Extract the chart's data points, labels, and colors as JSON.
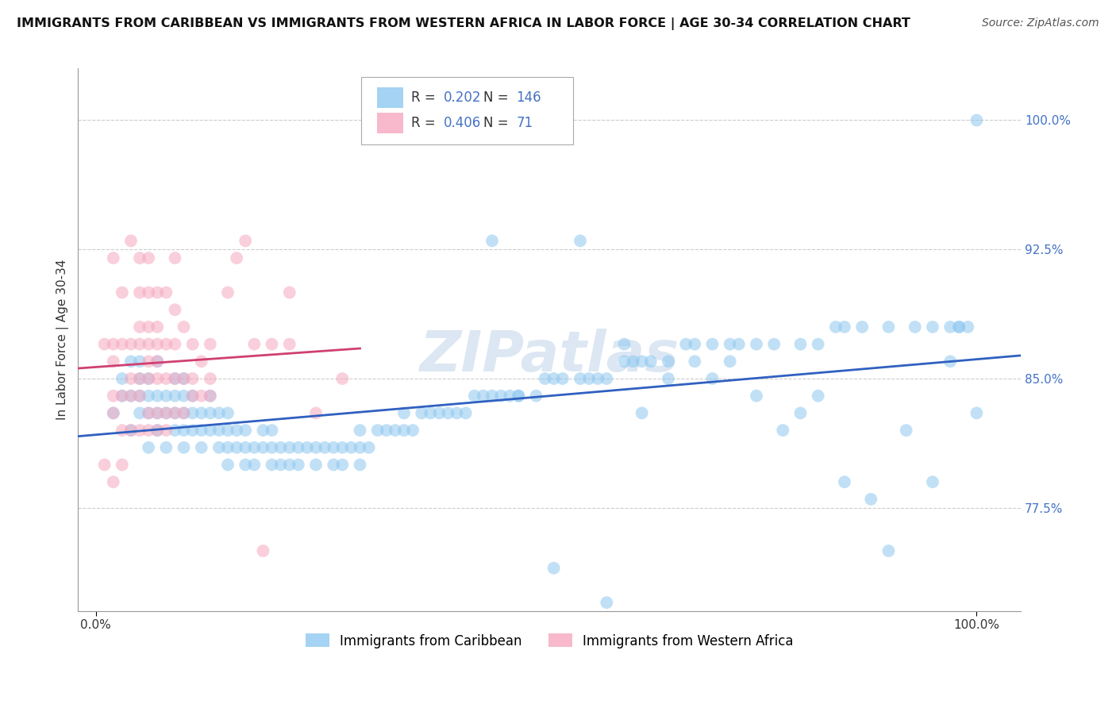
{
  "title": "IMMIGRANTS FROM CARIBBEAN VS IMMIGRANTS FROM WESTERN AFRICA IN LABOR FORCE | AGE 30-34 CORRELATION CHART",
  "source": "Source: ZipAtlas.com",
  "ylabel_label": "In Labor Force | Age 30-34",
  "y_ticks": [
    0.775,
    0.85,
    0.925,
    1.0
  ],
  "y_tick_labels": [
    "77.5%",
    "85.0%",
    "92.5%",
    "100.0%"
  ],
  "ylim": [
    0.715,
    1.03
  ],
  "xlim": [
    -0.02,
    1.05
  ],
  "series1_color": "#8EC8F0",
  "series1_edge": "#8EC8F0",
  "series2_color": "#F5A8BF",
  "series2_edge": "#F5A8BF",
  "series1_label": "Immigrants from Caribbean",
  "series2_label": "Immigrants from Western Africa",
  "R1": 0.202,
  "N1": 146,
  "R2": 0.406,
  "N2": 71,
  "line1_color": "#3060C0",
  "line2_color": "#D04070",
  "watermark": "ZIPatlas",
  "background_color": "#FFFFFF",
  "grid_color": "#CCCCCC",
  "series1_x": [
    0.02,
    0.03,
    0.03,
    0.04,
    0.04,
    0.04,
    0.05,
    0.05,
    0.05,
    0.05,
    0.06,
    0.06,
    0.06,
    0.06,
    0.07,
    0.07,
    0.07,
    0.07,
    0.08,
    0.08,
    0.08,
    0.09,
    0.09,
    0.09,
    0.09,
    0.1,
    0.1,
    0.1,
    0.1,
    0.1,
    0.11,
    0.11,
    0.11,
    0.12,
    0.12,
    0.12,
    0.13,
    0.13,
    0.13,
    0.14,
    0.14,
    0.14,
    0.15,
    0.15,
    0.15,
    0.15,
    0.16,
    0.16,
    0.17,
    0.17,
    0.17,
    0.18,
    0.18,
    0.19,
    0.19,
    0.2,
    0.2,
    0.2,
    0.21,
    0.21,
    0.22,
    0.22,
    0.23,
    0.23,
    0.24,
    0.25,
    0.25,
    0.26,
    0.27,
    0.27,
    0.28,
    0.28,
    0.29,
    0.3,
    0.3,
    0.3,
    0.31,
    0.32,
    0.33,
    0.34,
    0.35,
    0.35,
    0.36,
    0.37,
    0.38,
    0.39,
    0.4,
    0.41,
    0.42,
    0.43,
    0.44,
    0.45,
    0.46,
    0.47,
    0.48,
    0.5,
    0.51,
    0.52,
    0.53,
    0.55,
    0.56,
    0.57,
    0.58,
    0.6,
    0.61,
    0.62,
    0.63,
    0.65,
    0.67,
    0.68,
    0.7,
    0.72,
    0.73,
    0.75,
    0.77,
    0.8,
    0.82,
    0.84,
    0.85,
    0.87,
    0.9,
    0.93,
    0.95,
    0.98,
    1.0,
    0.45,
    0.55,
    0.6,
    0.65,
    0.7,
    0.75,
    0.8,
    0.85,
    0.9,
    0.95,
    1.0,
    0.48,
    0.52,
    0.58,
    0.62,
    0.68,
    0.72,
    0.78,
    0.82,
    0.88,
    0.92,
    0.97,
    0.99,
    0.98,
    0.97,
    0.96
  ],
  "series1_y": [
    0.83,
    0.84,
    0.85,
    0.82,
    0.84,
    0.86,
    0.83,
    0.85,
    0.84,
    0.86,
    0.81,
    0.83,
    0.84,
    0.85,
    0.82,
    0.83,
    0.84,
    0.86,
    0.81,
    0.83,
    0.84,
    0.82,
    0.83,
    0.84,
    0.85,
    0.81,
    0.82,
    0.83,
    0.84,
    0.85,
    0.82,
    0.83,
    0.84,
    0.81,
    0.82,
    0.83,
    0.82,
    0.83,
    0.84,
    0.81,
    0.82,
    0.83,
    0.8,
    0.81,
    0.82,
    0.83,
    0.81,
    0.82,
    0.8,
    0.81,
    0.82,
    0.8,
    0.81,
    0.81,
    0.82,
    0.8,
    0.81,
    0.82,
    0.8,
    0.81,
    0.8,
    0.81,
    0.8,
    0.81,
    0.81,
    0.8,
    0.81,
    0.81,
    0.8,
    0.81,
    0.8,
    0.81,
    0.81,
    0.8,
    0.81,
    0.82,
    0.81,
    0.82,
    0.82,
    0.82,
    0.82,
    0.83,
    0.82,
    0.83,
    0.83,
    0.83,
    0.83,
    0.83,
    0.83,
    0.84,
    0.84,
    0.84,
    0.84,
    0.84,
    0.84,
    0.84,
    0.85,
    0.85,
    0.85,
    0.85,
    0.85,
    0.85,
    0.85,
    0.86,
    0.86,
    0.86,
    0.86,
    0.86,
    0.87,
    0.87,
    0.87,
    0.87,
    0.87,
    0.87,
    0.87,
    0.87,
    0.87,
    0.88,
    0.88,
    0.88,
    0.88,
    0.88,
    0.88,
    0.88,
    1.0,
    0.93,
    0.93,
    0.87,
    0.85,
    0.85,
    0.84,
    0.83,
    0.79,
    0.75,
    0.79,
    0.83,
    0.84,
    0.74,
    0.72,
    0.83,
    0.86,
    0.86,
    0.82,
    0.84,
    0.78,
    0.82,
    0.88,
    0.88,
    0.88,
    0.86
  ],
  "series2_x": [
    0.01,
    0.01,
    0.02,
    0.02,
    0.02,
    0.02,
    0.02,
    0.02,
    0.03,
    0.03,
    0.03,
    0.03,
    0.03,
    0.04,
    0.04,
    0.04,
    0.04,
    0.04,
    0.05,
    0.05,
    0.05,
    0.05,
    0.05,
    0.05,
    0.05,
    0.06,
    0.06,
    0.06,
    0.06,
    0.06,
    0.06,
    0.06,
    0.06,
    0.07,
    0.07,
    0.07,
    0.07,
    0.07,
    0.07,
    0.07,
    0.08,
    0.08,
    0.08,
    0.08,
    0.08,
    0.09,
    0.09,
    0.09,
    0.09,
    0.09,
    0.1,
    0.1,
    0.1,
    0.11,
    0.11,
    0.11,
    0.12,
    0.12,
    0.13,
    0.13,
    0.13,
    0.15,
    0.16,
    0.17,
    0.18,
    0.19,
    0.2,
    0.22,
    0.22,
    0.25,
    0.28
  ],
  "series2_y": [
    0.8,
    0.87,
    0.79,
    0.83,
    0.84,
    0.86,
    0.87,
    0.92,
    0.8,
    0.82,
    0.84,
    0.87,
    0.9,
    0.82,
    0.84,
    0.85,
    0.87,
    0.93,
    0.82,
    0.84,
    0.85,
    0.87,
    0.88,
    0.9,
    0.92,
    0.82,
    0.83,
    0.85,
    0.86,
    0.87,
    0.88,
    0.9,
    0.92,
    0.82,
    0.83,
    0.85,
    0.86,
    0.87,
    0.88,
    0.9,
    0.82,
    0.83,
    0.85,
    0.87,
    0.9,
    0.83,
    0.85,
    0.87,
    0.89,
    0.92,
    0.83,
    0.85,
    0.88,
    0.84,
    0.85,
    0.87,
    0.84,
    0.86,
    0.84,
    0.85,
    0.87,
    0.9,
    0.92,
    0.93,
    0.87,
    0.75,
    0.87,
    0.87,
    0.9,
    0.83,
    0.85
  ]
}
